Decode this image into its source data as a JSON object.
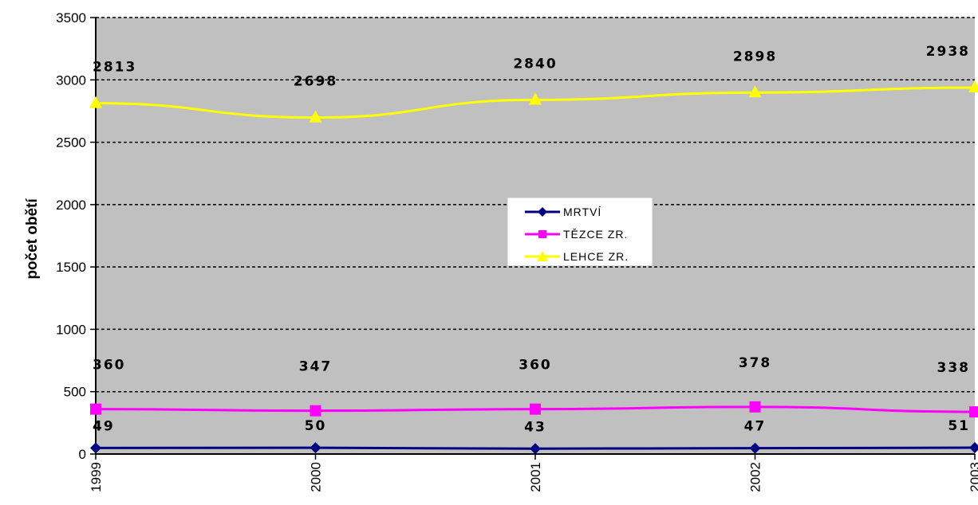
{
  "chart_data": {
    "type": "line",
    "ylabel": "počet obětí",
    "xlabel": "",
    "ylim": [
      0,
      3500
    ],
    "yticks": [
      0,
      500,
      1000,
      1500,
      2000,
      2500,
      3000,
      3500
    ],
    "categories": [
      "1999",
      "2000",
      "2001",
      "2002",
      "2003"
    ],
    "grid": "horizontal dashed",
    "legend_position": "center",
    "plot_background": "#C0C0C0",
    "series": [
      {
        "name": "MRTVÍ",
        "color": "#000080",
        "marker": "diamond",
        "values": [
          49,
          50,
          43,
          47,
          51
        ]
      },
      {
        "name": "TĚZCE ZR.",
        "color": "#FF00FF",
        "marker": "square",
        "values": [
          360,
          347,
          360,
          378,
          338
        ]
      },
      {
        "name": "LEHCE ZR.",
        "color": "#FFFF00",
        "marker": "triangle",
        "values": [
          2813,
          2698,
          2840,
          2898,
          2938
        ]
      }
    ]
  }
}
